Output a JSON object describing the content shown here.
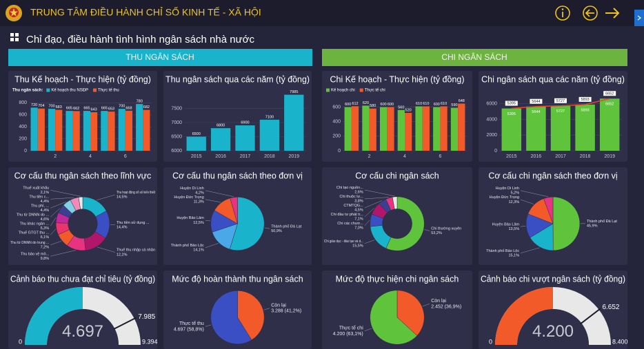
{
  "header": {
    "title": "TRUNG TÂM ĐIỀU HÀNH CHỈ SỐ KINH TẾ - XÃ HỘI",
    "subtitle": "Chỉ đạo, điều hành tình hình ngân sách nhà nước"
  },
  "sections": [
    "THU NGÂN SÁCH",
    "CHI NGÂN SÁCH"
  ],
  "chart_data": [
    {
      "type": "bar",
      "title": "Thu Kế hoạch - Thực hiện (tỷ đồng)",
      "legend_title": "Thu ngân sách:",
      "categories": [
        null,
        "2",
        null,
        "4",
        null,
        "6",
        null
      ],
      "series": [
        {
          "name": "Kế hoạch thu NSĐP",
          "color": "#19b3cc",
          "values": [
            720,
            700,
            665,
            665,
            665,
            700,
            780
          ]
        },
        {
          "name": "Thực tế thu",
          "color": "#f25a29",
          "values": [
            704,
            683,
            662,
            643,
            653,
            668,
            682
          ]
        }
      ],
      "ylim": [
        0,
        850
      ],
      "yticks": [
        0,
        200,
        400,
        600,
        800
      ],
      "grid": true
    },
    {
      "type": "bar",
      "title": "Thu ngân sách qua các năm (tỷ đồng)",
      "categories": [
        "2015",
        "2016",
        "2017",
        "2018",
        "2019"
      ],
      "series": [
        {
          "color": "#19b3cc",
          "values": [
            6500,
            6800,
            6900,
            7100,
            7985
          ]
        }
      ],
      "ylim": [
        6000,
        8000
      ],
      "yticks": [
        6000,
        6500,
        7000,
        7500
      ],
      "grid": true
    },
    {
      "type": "bar",
      "title": "Chi Kế hoạch - Thực hiện (tỷ đồng)",
      "categories": [
        null,
        "2",
        null,
        "4",
        null,
        "6",
        null
      ],
      "series": [
        {
          "name": "Kế hoạch chi",
          "color": "#5fc43c",
          "values": [
            600,
            620,
            600,
            560,
            610,
            600,
            590
          ]
        },
        {
          "name": "Thực tế chi",
          "color": "#f25a29",
          "values": [
            612,
            580,
            600,
            520,
            610,
            610,
            648
          ]
        }
      ],
      "ylim": [
        0,
        700
      ],
      "yticks": [
        0,
        200,
        400,
        600
      ],
      "grid": true
    },
    {
      "type": "bar",
      "title": "Chi ngân sách qua các năm (tỷ đồng)",
      "categories": [
        "2015",
        "2016",
        "2017",
        "2018",
        "2019"
      ],
      "series": [
        {
          "color": "#5fc43c",
          "values": [
            5395,
            5644,
            5727,
            5893,
            6652
          ]
        },
        {
          "type": "line",
          "color": "#e8472a",
          "values": [
            5395,
            5644,
            5727,
            5893,
            6652
          ]
        }
      ],
      "ylim": [
        0,
        7200
      ],
      "yticks": [
        0,
        2000,
        4000,
        6000
      ],
      "grid": true
    },
    {
      "type": "pie",
      "donut": true,
      "title": "Cơ cấu thu ngân sách theo lĩnh vực",
      "categories": [
        "Thu hoạt động xổ số kiến thiết",
        "Thu tiền sử dụng ...",
        "Thuế thu nhập cá nhân",
        "Thu bảo vệ mô...",
        "Thu từ DNNN do trung ...",
        "Thuế GTGT thu ...",
        "Thu khác ngân ...",
        "Thu từ DNNN do ...",
        "Thu phí, ...",
        "Thu tiền c...",
        "Thuế xuất khẩu"
      ],
      "values": [
        14.5,
        14.4,
        12.2,
        9.8,
        7.2,
        6.1,
        5.3,
        4.6,
        4.4,
        4.4,
        2.1
      ],
      "value_labels": [
        "14,5%",
        "14,4%",
        "12,2%",
        "9,8%",
        "7,2%",
        "6,1%",
        "5,3%",
        "4,6%",
        "4,4%",
        "4,4%",
        "2,1%"
      ],
      "colors": [
        "#19b3cc",
        "#3b4fc4",
        "#b0176a",
        "#e8337f",
        "#f25a29",
        "#e9346e",
        "#c0299a",
        "#3a3f8f",
        "#7fd2e6",
        "#f28ab8",
        "#e8e8e8"
      ]
    },
    {
      "type": "pie",
      "title": "Cơ cấu thu ngân sách theo đơn vị",
      "categories": [
        "Thành phố Đà Lạt",
        "Thành phố Bảo Lộc",
        "Huyện Bảo Lâm",
        "Huyện Đức Trọng",
        "Huyện Di Linh"
      ],
      "values": [
        50.9,
        14.1,
        12.5,
        11.3,
        4.2
      ],
      "value_labels": [
        "50,9%",
        "14,1%",
        "12,5%",
        "11,3%",
        "4,2%"
      ],
      "colors": [
        "#19b3cc",
        "#4aa8e8",
        "#3b4fc4",
        "#f25a29",
        "#e8337f"
      ]
    },
    {
      "type": "pie",
      "donut": true,
      "title": "Cơ cấu chi ngân sách",
      "categories": [
        "Chi thường xuyên",
        "Chi giáo dục - đào tạo và d...",
        "Chi các chươ...",
        "Chi đầu tư phát tr...",
        "CTMTQG...",
        "Chi thuộc lư...",
        "Chi tạo nguồn..."
      ],
      "values": [
        53.2,
        15.5,
        7.0,
        7.1,
        4.5,
        3.8,
        2.6
      ],
      "value_labels": [
        "53,2%",
        "15,5%",
        "7,0%",
        "7,1%",
        "4,5%",
        "3,8%",
        "2,6%"
      ],
      "colors": [
        "#5fc43c",
        "#19b3cc",
        "#3b4fc4",
        "#b0176a",
        "#3a3f8f",
        "#e8337f",
        "#e8e8e8"
      ]
    },
    {
      "type": "pie",
      "title": "Cơ cấu chi ngân sách theo đơn vị",
      "categories": [
        "Thành phố Đà Lạt",
        "Thành phố Bảo Lộc",
        "Huyện Bảo Lâm",
        "Huyện Đức Trọng",
        "Huyện Di Linh"
      ],
      "values": [
        45.9,
        15.1,
        13.5,
        12.3,
        5.2
      ],
      "value_labels": [
        "45,9%",
        "15,1%",
        "13,5%",
        "12,3%",
        "5,2%"
      ],
      "colors": [
        "#5fc43c",
        "#19b3cc",
        "#3b4fc4",
        "#f25a29",
        "#e8337f"
      ]
    },
    {
      "type": "gauge",
      "title": "Cảnh báo thu chưa đạt chỉ tiêu (tỷ đồng)",
      "value": 4697,
      "value_label": "4.697",
      "target": 7985,
      "target_label": "7.985",
      "min": 0,
      "max": 9394,
      "max_label": "9.394",
      "color": "#19b3cc",
      "track_color": "#e8e8e8"
    },
    {
      "type": "pie",
      "title": "Mức độ hoàn thành thu ngân sách",
      "categories": [
        "Còn lại",
        "Thực tế thu"
      ],
      "values": [
        3288,
        4697
      ],
      "value_labels": [
        "3.288 (41,2%)",
        "4.697 (58,8%)"
      ],
      "colors": [
        "#f25a29",
        "#3b4fc4"
      ]
    },
    {
      "type": "pie",
      "title": "Mức độ thực hiện chi ngân sách",
      "categories": [
        "Còn lại",
        "Thực tế chi"
      ],
      "values": [
        2452,
        4200
      ],
      "value_labels": [
        "2.452 (36,9%)",
        "4.200 (63,1%)"
      ],
      "colors": [
        "#f25a29",
        "#5fc43c"
      ]
    },
    {
      "type": "gauge",
      "title": "Cảnh báo chi vượt ngân sách (tỷ đồng)",
      "value": 4200,
      "value_label": "4.200",
      "target": 6652,
      "target_label": "6.652",
      "min": 0,
      "max": 8400,
      "max_label": "8.400",
      "color": "#f25a29",
      "track_color": "#e8e8e8"
    }
  ]
}
